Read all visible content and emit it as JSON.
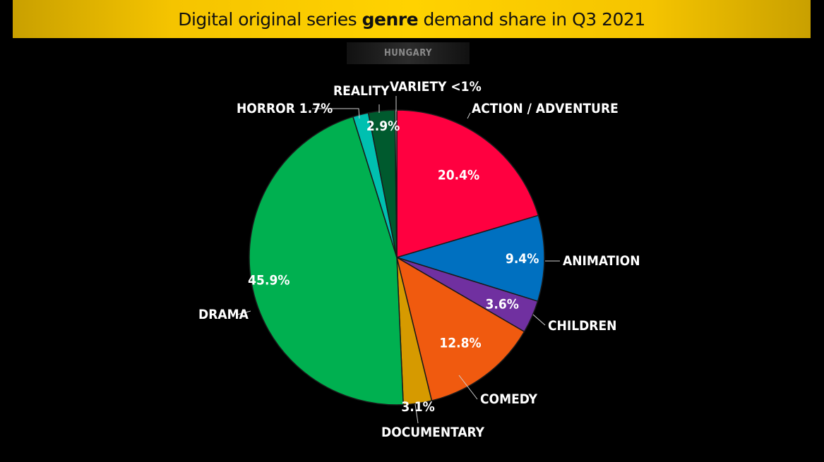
{
  "title": {
    "prefix": "Digital original series ",
    "emphasis": "genre",
    "suffix": " demand share in Q3 2021"
  },
  "region": "HUNGARY",
  "chart_data": {
    "type": "pie",
    "title": "Digital original series genre demand share in Q3 2021",
    "subtitle": "HUNGARY",
    "slices": [
      {
        "name": "ACTION / ADVENTURE",
        "value": 20.4,
        "value_label": "20.4%",
        "color": "#ff0040"
      },
      {
        "name": "ANIMATION",
        "value": 9.4,
        "value_label": "9.4%",
        "color": "#0070c0"
      },
      {
        "name": "CHILDREN",
        "value": 3.6,
        "value_label": "3.6%",
        "color": "#7030a0"
      },
      {
        "name": "COMEDY",
        "value": 12.8,
        "value_label": "12.8%",
        "color": "#f05a0f"
      },
      {
        "name": "DOCUMENTARY",
        "value": 3.1,
        "value_label": "3.1%",
        "color": "#d69a00"
      },
      {
        "name": "DRAMA",
        "value": 45.9,
        "value_label": "45.9%",
        "color": "#00b050"
      },
      {
        "name": "HORROR",
        "value": 1.7,
        "value_label": "HORROR 1.7%",
        "color": "#00c0b0"
      },
      {
        "name": "REALITY",
        "value": 2.9,
        "value_label": "2.9%",
        "color": "#005a2e"
      },
      {
        "name": "VARIETY",
        "value": 0.2,
        "value_label": "VARIETY <1%",
        "color": "#b0b0b0"
      }
    ],
    "legend": "none"
  }
}
